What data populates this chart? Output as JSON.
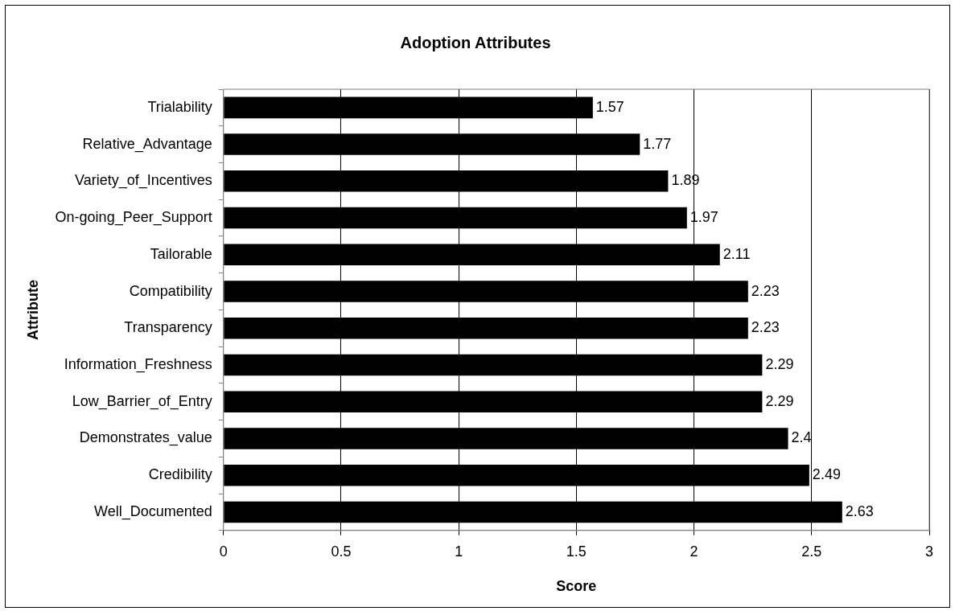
{
  "chart_data": {
    "type": "bar",
    "orientation": "horizontal",
    "title": "Adoption Attributes",
    "xlabel": "Score",
    "ylabel": "Attribute",
    "categories": [
      "Trialability",
      "Relative_Advantage",
      "Variety_of_Incentives",
      "On-going_Peer_Support",
      "Tailorable",
      "Compatibility",
      "Transparency",
      "Information_Freshness",
      "Low_Barrier_of_Entry",
      "Demonstrates_value",
      "Credibility",
      "Well_Documented"
    ],
    "values": [
      1.57,
      1.77,
      1.89,
      1.97,
      2.11,
      2.23,
      2.23,
      2.29,
      2.29,
      2.4,
      2.49,
      2.63
    ],
    "color": "#000000",
    "xlim": [
      0,
      3
    ],
    "xticks": [
      0,
      0.5,
      1,
      1.5,
      2,
      2.5,
      3
    ],
    "grid": "x",
    "data_labels": true,
    "legend": false
  }
}
